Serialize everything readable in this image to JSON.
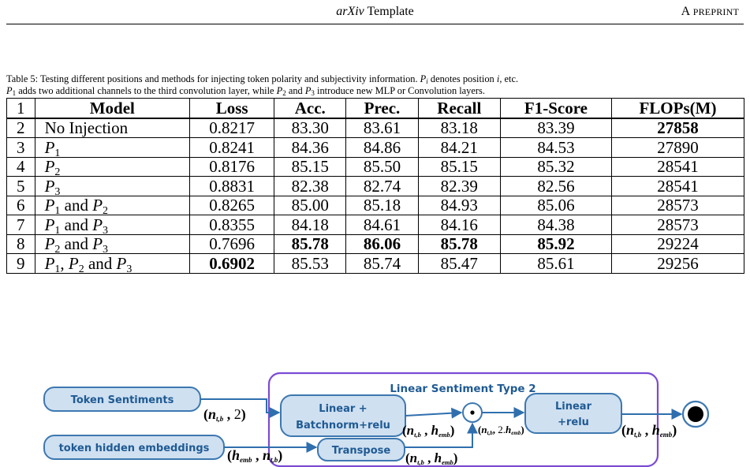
{
  "header": {
    "title_italic": "arXiv",
    "title_rest": "Template",
    "right_big_a": "A",
    "right_small": "PREPRINT"
  },
  "caption": {
    "line1": "Table 5: Testing different positions and methods for injecting token polarity and subjectivity information.",
    "p": "P",
    "i": "i",
    "denotes": "denotes position",
    "etc": ", etc.",
    "line2_a": "adds two additional channels to the third convolution layer, while",
    "and": "and",
    "line2_b": "introduce new MLP or Convolution layers."
  },
  "table": {
    "headers": [
      "1",
      "Model",
      "Loss",
      "Acc.",
      "Prec.",
      "Recall",
      "F1-Score",
      "FLOPs(M)"
    ],
    "rows": [
      {
        "idx": "2",
        "model": "No Injection",
        "loss": "0.8217",
        "acc": "83.30",
        "prec": "83.61",
        "recall": "83.18",
        "f1": "83.39",
        "flops": "27858"
      },
      {
        "idx": "3",
        "model": "P1",
        "loss": "0.8241",
        "acc": "84.36",
        "prec": "84.86",
        "recall": "84.21",
        "f1": "84.53",
        "flops": "27890"
      },
      {
        "idx": "4",
        "model": "P2",
        "loss": "0.8176",
        "acc": "85.15",
        "prec": "85.50",
        "recall": "85.15",
        "f1": "85.32",
        "flops": "28541"
      },
      {
        "idx": "5",
        "model": "P3",
        "loss": "0.8831",
        "acc": "82.38",
        "prec": "82.74",
        "recall": "82.39",
        "f1": "82.56",
        "flops": "28541"
      },
      {
        "idx": "6",
        "model": "P1 and P2",
        "loss": "0.8265",
        "acc": "85.00",
        "prec": "85.18",
        "recall": "84.93",
        "f1": "85.06",
        "flops": "28573"
      },
      {
        "idx": "7",
        "model": "P1 and P3",
        "loss": "0.8355",
        "acc": "84.18",
        "prec": "84.61",
        "recall": "84.16",
        "f1": "84.38",
        "flops": "28573"
      },
      {
        "idx": "8",
        "model": "P2 and P3",
        "loss": "0.7696",
        "acc": "85.78",
        "prec": "86.06",
        "recall": "85.78",
        "f1": "85.92",
        "flops": "29224"
      },
      {
        "idx": "9",
        "model": "P1, P2 and P3",
        "loss": "0.6902",
        "acc": "85.53",
        "prec": "85.74",
        "recall": "85.47",
        "f1": "85.61",
        "flops": "29256"
      }
    ],
    "model_text": {
      "and": "and",
      "comma": ","
    }
  },
  "diagram": {
    "group_title": "Linear Sentiment Type 2",
    "input_sentiments": "Token Sentiments",
    "input_embeddings": "token hidden embeddings",
    "linear_bn_line1": "Linear +",
    "linear_bn_line2": "Batchnorm+relu",
    "transpose": "Transpose",
    "linear_relu_line1": "Linear",
    "linear_relu_line2": "+relu",
    "odot": "⊙",
    "n": "n",
    "tb": "t,b",
    "h": "h",
    "emb": "emb",
    "two": "2",
    "two_dot": "2.",
    "comma": ",",
    "open_paren": "(",
    "close_paren": ")",
    "colors": {
      "box_fill": "#cfe0f1",
      "box_stroke": "#3d78b0",
      "box_text": "#1f5a93",
      "arrow": "#2f6fae",
      "group_stroke": "#7b4bd4",
      "group_title": "#1f5a93"
    }
  }
}
